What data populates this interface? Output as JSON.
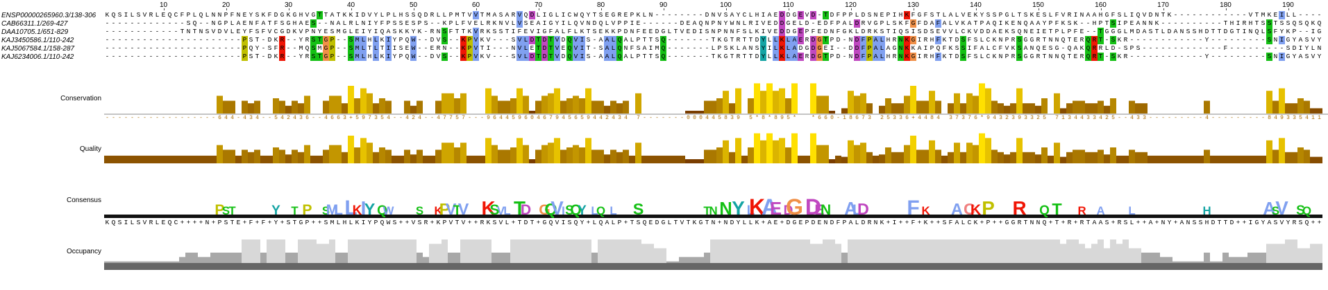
{
  "ruler": {
    "ticks": [
      "10",
      "20",
      "30",
      "40",
      "50",
      "60",
      "70",
      "80",
      "90",
      "100",
      "110",
      "120",
      "130",
      "140",
      "150",
      "160",
      "170",
      "180",
      "190"
    ]
  },
  "sequences": [
    {
      "name": "ENSP00000265960.3/138-306",
      "seq": "KQSILSVRLEQCFPLQLNNPFNEYSKFDGKGHVGTTATKKIDVYLPLHSSQDRLLPMTVVTMASARVQDLIGLICWQYTSEGREPKLN--------DNVSAYCLHIAEDDGEVD-TDFPPLDSNEPIHKFGFSTLALVEKYSSPGLTSKESLFVRINAAHGFSLIQVDNTK------------VTMKEILL----"
    },
    {
      "name": "CAB66311.1/269-427",
      "seq": "-------------SQ--NGPLAENFATFSGHAES--NALRLNIYFPSSESPS--KPLFVELRKNVLVSEAIGYILQVNDQLVPPIE------DEAQNPNYWNLRIVEDDGELD-EDFPALDRVGPLSKFGFDAFALVKATPAQIKENQAAYPFKSK--HPTSIPEANNK----------THIRHTSSTSSQSQKQ"
    },
    {
      "name": "DAA10705.1/651-829",
      "seq": "------------TNTNSVDVLEYFSFVCGDKVPNYESMGLEIYIQASKKYK-RNSFTTKVRKSSTIFEVIGFALFLKTSEKKPDNFEEDGLTVEDISNPNNFSLKIVEDDGEPFEDNFGKLDRKSTIQSISDSEVVLCKVDDAEKSQNEIETPLPFE--TGGGLMDASTLDANSSHDTTDGTINQLSFYKP--IGS"
    },
    {
      "name": "KAJ3450586.1/110-242",
      "seq": "----------------------PST-DKR--YRSTGP--SMLHLKIYPQW--DVS--KPVKV---SVLDTDTVDQVIS-AALQALPTTSQ-------TKGTRTTDYLLKLAERDGTPD-NDFPALHRNKGIRHFKTDSFSLCKNPRSGGRTNNQTERQRT-SKR------------Y---------SNIGYASVYRS----"
    },
    {
      "name": "KAJ5067584.1/158-287",
      "seq": "----------------------PQY-SFR--MQSMGP--SMLTLTIISEW--ERN--KPVTI---NVLETDTVEQVIT-SALQNFSAIMQ-------LPSKLANSYILKLADGDGEI--DDFPALAGNKKAIPQFKSSIFALCFVKSANQESG-QAKQRRLD-SPS-------------F---------SDIYLNTGQND----"
    },
    {
      "name": "KAJ6234006.1/110-242",
      "seq": "----------------------PST-DKR--YRSTGP--SMLHLKIYPQW--DVS--KPVKV---SVLDTDTVDQVIS-AALQALPTTSQ-------TKGTRTTDYLLKLAERDGTPD-NDFPALHRNKGIRHFKTDSFSLCKNPRSGGRTNNQTERQRT-SKR------------Y---------SNIGYASVYRS----"
    }
  ],
  "annotations": {
    "conservation_label": "Conservation",
    "quality_label": "Quality",
    "consensus_label": "Consensus",
    "occupancy_label": "Occupancy",
    "conservation_values": "------------------644-434--542436--4663+597354--424--47757---96445960467945659442434 7-------000445839 5*8*895*  *660-18673 25336+4484 37376*9432393325 7134433425--433---------4---------8493354111-----",
    "consensus_sequence": "KQSILSVRLEQC++++N+PSTE+F+F+Y+STGP++SMLHLKIYPQWS++VSR+KPVTV++RKSVL+TDT+GQVISQY+LQALP+TSQEDGLTVTKGTN+NDYLLK+AE+DGEPDENDFPALDRNK+I++F+K++SFALCK+P++GGRTNNQ+T+R+RTAAS+RSL++A+NY+ANSSHDTTD++IGYASVYRSQ++S"
  },
  "colors": {
    "hydrophobic": "#80a0f0",
    "positive": "#f01505",
    "negative": "#c048c0",
    "polar": "#15c015",
    "cysteine": "#f08080",
    "glycine": "#f09048",
    "proline": "#c0c000",
    "aromatic": "#15a4a4",
    "annotation_dark": "#7a3d00",
    "annotation_bright": "#ffe000",
    "occupancy_dark": "#666666",
    "occupancy_light": "#d8d8d8"
  }
}
